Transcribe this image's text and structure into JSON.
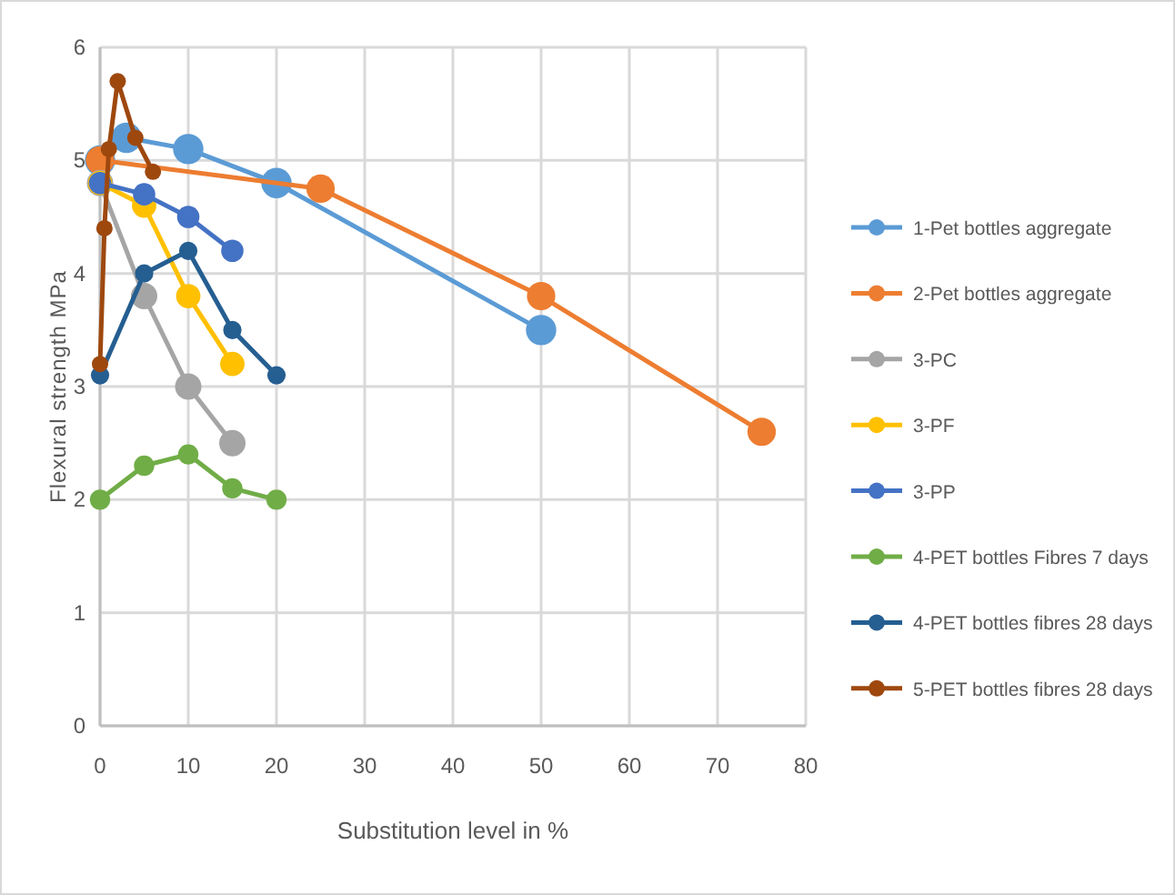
{
  "chart_data": {
    "type": "line",
    "xlabel": "Substitution level in %",
    "ylabel": "Flexural strength MPa",
    "xlim": [
      0,
      80
    ],
    "xticks": [
      0,
      10,
      20,
      30,
      40,
      50,
      60,
      70,
      80
    ],
    "ylim": [
      0,
      6
    ],
    "yticks": [
      0,
      1,
      2,
      3,
      4,
      5,
      6
    ],
    "grid": true,
    "legend": "right",
    "marker": "circle",
    "line_style": "solid",
    "series": [
      {
        "name": "1-Pet bottles aggregate",
        "color": "#5b9bd5",
        "x": [
          0,
          3,
          10,
          20,
          50
        ],
        "values": [
          5.0,
          5.2,
          5.1,
          4.8,
          3.5
        ]
      },
      {
        "name": "2-Pet bottles aggregate",
        "color": "#ed7d31",
        "x": [
          0,
          25,
          50,
          75
        ],
        "values": [
          5.0,
          4.75,
          3.8,
          2.6
        ]
      },
      {
        "name": "3-PC",
        "color": "#a5a5a5",
        "x": [
          0,
          5,
          10,
          15
        ],
        "values": [
          4.8,
          3.8,
          3.0,
          2.5
        ]
      },
      {
        "name": "3-PF",
        "color": "#ffc000",
        "x": [
          0,
          5,
          10,
          15
        ],
        "values": [
          4.8,
          4.6,
          3.8,
          3.2
        ]
      },
      {
        "name": "3-PP",
        "color": "#4472c4",
        "x": [
          0,
          5,
          10,
          15
        ],
        "values": [
          4.8,
          4.7,
          4.5,
          4.2
        ]
      },
      {
        "name": "4-PET bottles Fibres 7 days",
        "color": "#70ad47",
        "x": [
          0,
          5,
          10,
          15,
          20
        ],
        "values": [
          2.0,
          2.3,
          2.4,
          2.1,
          2.0
        ]
      },
      {
        "name": "4-PET bottles fibres 28 days",
        "color": "#255e91",
        "x": [
          0,
          5,
          10,
          15,
          20
        ],
        "values": [
          3.1,
          4.0,
          4.2,
          3.5,
          3.1
        ]
      },
      {
        "name": "5-PET bottles fibres 28 days",
        "color": "#9e480e",
        "x": [
          0,
          0.5,
          1,
          2,
          4,
          6
        ],
        "values": [
          3.2,
          4.4,
          5.1,
          5.7,
          5.2,
          4.9
        ]
      }
    ]
  }
}
